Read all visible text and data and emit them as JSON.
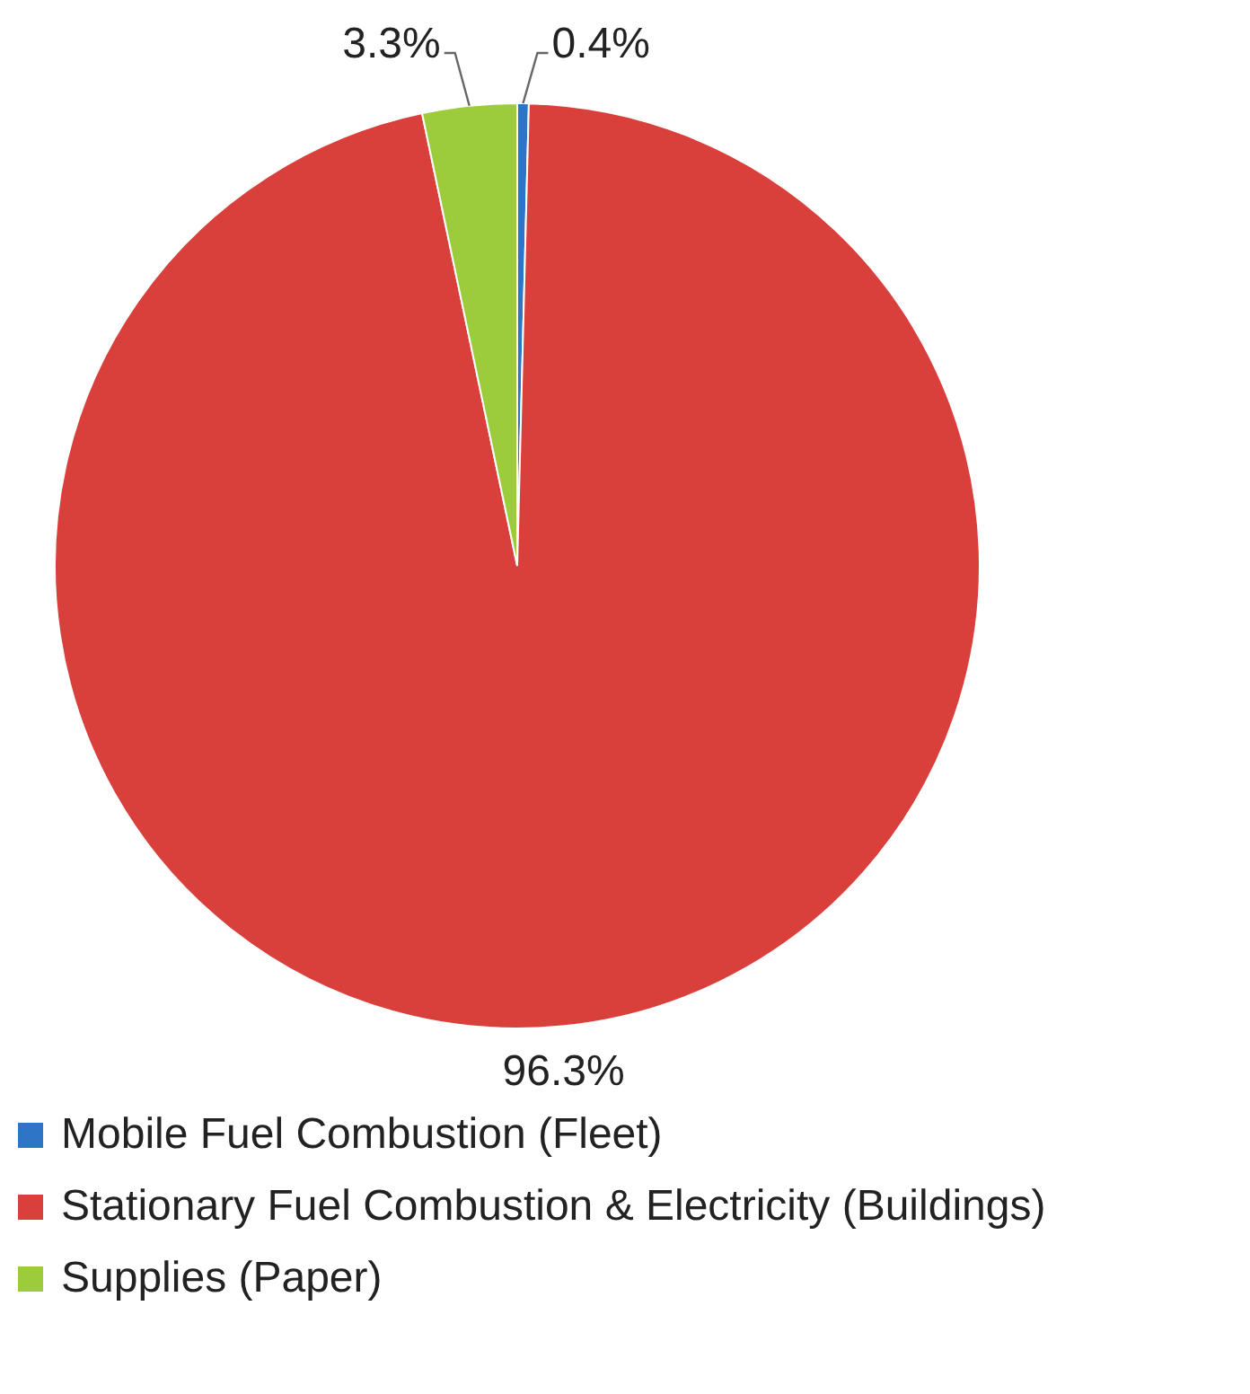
{
  "chart_data": {
    "type": "pie",
    "categories": [
      "Mobile Fuel Combustion (Fleet)",
      "Stationary Fuel Combustion & Electricity (Buildings)",
      "Supplies (Paper)"
    ],
    "values": [
      0.4,
      96.3,
      3.3
    ],
    "colors": [
      "#2e75c6",
      "#d9403c",
      "#9ccc3c"
    ],
    "value_labels": [
      "0.4%",
      "96.3%",
      "3.3%"
    ],
    "legend": "bottom left"
  }
}
